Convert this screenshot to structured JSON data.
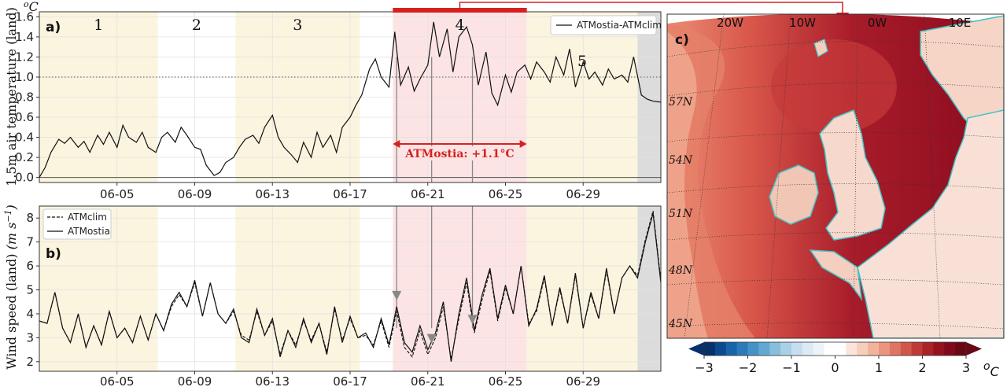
{
  "chart_data": [
    {
      "panel": "a)",
      "type": "line",
      "ylabel": "1.5m air temperature (land)",
      "unit": "oC",
      "ylim": [
        -0.05,
        1.65
      ],
      "yticks": [
        "0.0",
        "0.2",
        "0.4",
        "0.6",
        "0.8",
        "1.0",
        "1.2",
        "1.4",
        "1.6"
      ],
      "ytick_values": [
        0,
        0.2,
        0.4,
        0.6,
        0.8,
        1.0,
        1.2,
        1.4,
        1.6
      ],
      "xlim_day": [
        1,
        33
      ],
      "x_ticks": [
        "06-05",
        "06-09",
        "06-13",
        "06-17",
        "06-21",
        "06-25",
        "06-29"
      ],
      "x_tick_days": [
        5,
        9,
        13,
        17,
        21,
        25,
        29
      ],
      "reference_line": 1.0,
      "legend": [
        "ATMostia-ATMclim"
      ],
      "period_labels": [
        "1",
        "2",
        "3",
        "4",
        "5"
      ],
      "periods": [
        {
          "label": "1",
          "start": 1,
          "end": 7.1,
          "color": "#fbf4df"
        },
        {
          "label": "2",
          "start": 7.1,
          "end": 11.1,
          "color": "#ffffff"
        },
        {
          "label": "3",
          "start": 11.1,
          "end": 17.5,
          "color": "#fbf4df"
        },
        {
          "label": "4",
          "start": 19.2,
          "end": 26.1,
          "color": "#fde4e4"
        },
        {
          "label": "5",
          "start": 26.1,
          "end": 31.8,
          "color": "#fbf4df"
        },
        {
          "label": "",
          "start": 31.8,
          "end": 33,
          "color": "#dcdcdc"
        }
      ],
      "heatwave_annotation": "ATMostia: +1.1°C",
      "series": [
        {
          "name": "ATMostia-ATMclim",
          "x": [
            1,
            1.3,
            1.6,
            2,
            2.3,
            2.6,
            3,
            3.3,
            3.6,
            4,
            4.3,
            4.6,
            5,
            5.3,
            5.6,
            6,
            6.3,
            6.6,
            7,
            7.3,
            7.6,
            8,
            8.3,
            8.6,
            9,
            9.3,
            9.6,
            10,
            10.3,
            10.6,
            11,
            11.3,
            11.6,
            12,
            12.3,
            12.6,
            13,
            13.3,
            13.6,
            14,
            14.3,
            14.6,
            15,
            15.3,
            15.6,
            16,
            16.3,
            16.6,
            17,
            17.3,
            17.6,
            18,
            18.3,
            18.6,
            19,
            19.3,
            19.6,
            20,
            20.3,
            20.6,
            21,
            21.3,
            21.6,
            22,
            22.3,
            22.6,
            23,
            23.3,
            23.6,
            24,
            24.3,
            24.6,
            25,
            25.3,
            25.6,
            26,
            26.3,
            26.6,
            27,
            27.3,
            27.6,
            28,
            28.3,
            28.6,
            29,
            29.3,
            29.6,
            30,
            30.3,
            30.6,
            31,
            31.3,
            31.6,
            32,
            32.3,
            32.6,
            33
          ],
          "y": [
            0.0,
            0.1,
            0.25,
            0.38,
            0.34,
            0.4,
            0.3,
            0.36,
            0.25,
            0.42,
            0.33,
            0.45,
            0.3,
            0.52,
            0.4,
            0.35,
            0.45,
            0.3,
            0.25,
            0.4,
            0.45,
            0.35,
            0.5,
            0.42,
            0.3,
            0.28,
            0.12,
            0.02,
            0.05,
            0.15,
            0.2,
            0.3,
            0.38,
            0.42,
            0.34,
            0.5,
            0.62,
            0.4,
            0.3,
            0.22,
            0.15,
            0.35,
            0.2,
            0.45,
            0.3,
            0.42,
            0.25,
            0.5,
            0.6,
            0.72,
            0.82,
            1.08,
            1.18,
            1.0,
            0.9,
            1.45,
            0.92,
            1.1,
            0.86,
            0.98,
            1.12,
            1.55,
            1.2,
            1.48,
            1.05,
            1.4,
            1.5,
            1.32,
            0.92,
            1.25,
            0.84,
            0.72,
            1.02,
            0.85,
            1.05,
            1.12,
            0.98,
            1.15,
            1.05,
            0.95,
            1.2,
            1.02,
            1.28,
            0.9,
            1.15,
            0.98,
            1.05,
            0.92,
            1.08,
            0.98,
            1.02,
            0.95,
            1.2,
            0.82,
            0.78,
            0.76,
            0.75
          ]
        }
      ]
    },
    {
      "panel": "b)",
      "type": "line",
      "ylabel": "Wind speed (land)",
      "unit": "m s-1",
      "ylim": [
        1.6,
        8.5
      ],
      "yticks": [
        "2",
        "3",
        "4",
        "5",
        "6",
        "7",
        "8"
      ],
      "ytick_values": [
        2,
        3,
        4,
        5,
        6,
        7,
        8
      ],
      "xlim_day": [
        1,
        33
      ],
      "x_ticks": [
        "06-05",
        "06-09",
        "06-13",
        "06-17",
        "06-21",
        "06-25",
        "06-29"
      ],
      "x_tick_days": [
        5,
        9,
        13,
        17,
        21,
        25,
        29
      ],
      "legend": [
        "ATMclim",
        "ATMostia"
      ],
      "series": [
        {
          "name": "ATMostia",
          "x": [
            1,
            1.4,
            1.8,
            2.2,
            2.6,
            3,
            3.4,
            3.8,
            4.2,
            4.6,
            5,
            5.4,
            5.8,
            6.2,
            6.6,
            7,
            7.4,
            7.8,
            8.2,
            8.6,
            9,
            9.4,
            9.8,
            10.2,
            10.6,
            11,
            11.4,
            11.8,
            12.2,
            12.6,
            13,
            13.4,
            13.8,
            14.2,
            14.6,
            15,
            15.4,
            15.8,
            16.2,
            16.6,
            17,
            17.4,
            17.8,
            18.2,
            18.6,
            19,
            19.4,
            19.8,
            20.2,
            20.6,
            21,
            21.4,
            21.8,
            22.2,
            22.6,
            23,
            23.4,
            23.8,
            24.2,
            24.6,
            25,
            25.4,
            25.8,
            26.2,
            26.6,
            27,
            27.4,
            27.8,
            28.2,
            28.6,
            29,
            29.4,
            29.8,
            30.2,
            30.6,
            31,
            31.4,
            31.8,
            32.2,
            32.6,
            33
          ],
          "y": [
            3.7,
            3.6,
            4.9,
            3.4,
            2.8,
            4.0,
            2.6,
            3.5,
            2.7,
            4.1,
            3.0,
            3.4,
            2.8,
            3.9,
            2.9,
            4.0,
            3.3,
            4.4,
            4.9,
            4.3,
            5.4,
            3.9,
            5.3,
            4.0,
            3.6,
            4.2,
            3.0,
            2.8,
            4.2,
            3.1,
            3.8,
            2.2,
            3.3,
            2.6,
            3.8,
            2.8,
            3.6,
            2.3,
            4.3,
            2.8,
            3.9,
            3.0,
            3.2,
            2.6,
            3.8,
            2.7,
            4.3,
            2.8,
            2.4,
            3.5,
            2.5,
            3.2,
            4.5,
            2.0,
            4.0,
            5.5,
            3.3,
            4.8,
            5.9,
            3.8,
            5.2,
            4.0,
            6.0,
            3.5,
            4.2,
            5.6,
            3.5,
            5.1,
            3.6,
            5.7,
            3.4,
            4.9,
            3.8,
            5.9,
            4.0,
            5.5,
            6.0,
            5.5,
            7.0,
            8.2,
            5.3
          ]
        },
        {
          "name": "ATMclim",
          "x": [
            1,
            1.4,
            1.8,
            2.2,
            2.6,
            3,
            3.4,
            3.8,
            4.2,
            4.6,
            5,
            5.4,
            5.8,
            6.2,
            6.6,
            7,
            7.4,
            7.8,
            8.2,
            8.6,
            9,
            9.4,
            9.8,
            10.2,
            10.6,
            11,
            11.4,
            11.8,
            12.2,
            12.6,
            13,
            13.4,
            13.8,
            14.2,
            14.6,
            15,
            15.4,
            15.8,
            16.2,
            16.6,
            17,
            17.4,
            17.8,
            18.2,
            18.6,
            19,
            19.4,
            19.8,
            20.2,
            20.6,
            21,
            21.4,
            21.8,
            22.2,
            22.6,
            23,
            23.4,
            23.8,
            24.2,
            24.6,
            25,
            25.4,
            25.8,
            26.2,
            26.6,
            27,
            27.4,
            27.8,
            28.2,
            28.6,
            29,
            29.4,
            29.8,
            30.2,
            30.6,
            31,
            31.4,
            31.8,
            32.2,
            32.6,
            33
          ],
          "y": [
            3.7,
            3.6,
            4.9,
            3.4,
            2.8,
            4.0,
            2.6,
            3.5,
            2.7,
            4.1,
            3.0,
            3.4,
            2.8,
            3.9,
            2.9,
            4.0,
            3.3,
            4.3,
            4.8,
            4.3,
            5.3,
            3.9,
            5.3,
            4.0,
            3.6,
            4.1,
            3.1,
            2.9,
            4.1,
            3.1,
            3.7,
            2.3,
            3.3,
            2.7,
            3.7,
            2.9,
            3.6,
            2.4,
            4.2,
            2.9,
            3.8,
            3.0,
            3.1,
            2.7,
            3.7,
            2.6,
            4.1,
            2.6,
            2.2,
            3.3,
            2.3,
            3.0,
            4.3,
            2.1,
            3.8,
            5.3,
            3.2,
            4.6,
            5.8,
            3.7,
            5.1,
            4.0,
            6.0,
            3.6,
            4.1,
            5.5,
            3.5,
            5.0,
            3.6,
            5.6,
            3.4,
            4.8,
            3.8,
            5.8,
            4.0,
            5.5,
            6.0,
            5.6,
            7.1,
            8.3,
            5.4
          ]
        }
      ],
      "arrow_days": [
        19.4,
        21.2,
        23.3
      ]
    },
    {
      "panel": "c)",
      "type": "heatmap",
      "lon_labels": [
        "20W",
        "10W",
        "0W",
        "10E"
      ],
      "lat_labels": [
        "57N",
        "54N",
        "51N",
        "48N",
        "45N"
      ],
      "colorbar_ticks": [
        "−3",
        "−2",
        "−1",
        "0",
        "1",
        "2",
        "3"
      ],
      "colorbar_range": [
        -3,
        3
      ],
      "colorbar_unit": "oC",
      "colors": {
        "neg_dark": "#08306b",
        "neg_light": "#d6e6f4",
        "zero": "#ffffff",
        "pos_light": "#f9d2c2",
        "pos_mid": "#e06050",
        "pos_dark": "#8b0a1f",
        "coast": "#40c4c8"
      }
    }
  ]
}
